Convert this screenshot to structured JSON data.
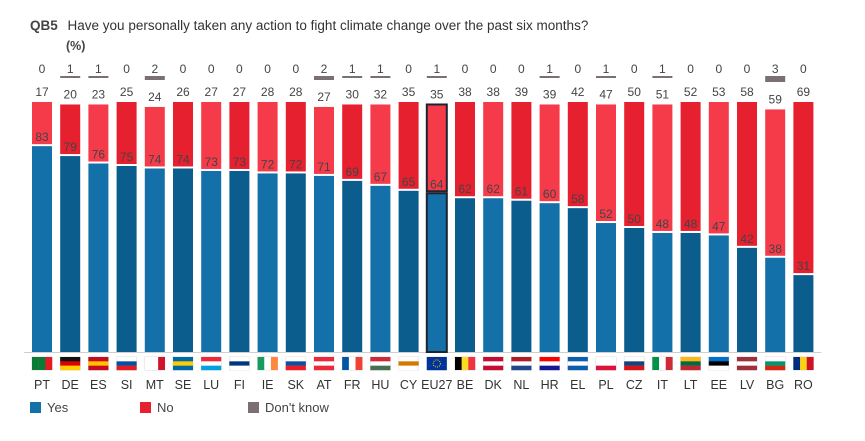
{
  "header": {
    "code": "QB5",
    "question": "Have you personally taken any action to fight climate change over the past six months?",
    "unit": "(%)"
  },
  "colors": {
    "yes": "#1470a8",
    "yes_dark": "#0b5d8e",
    "no": "#e6202f",
    "no_light": "#f53a4a",
    "dont_know": "#7a6f71"
  },
  "legend": [
    {
      "label": "Yes",
      "color_key": "yes"
    },
    {
      "label": "No",
      "color_key": "no"
    },
    {
      "label": "Don't know",
      "color_key": "dont_know"
    }
  ],
  "chart_data": {
    "type": "bar",
    "stacked": true,
    "categories": [
      "PT",
      "DE",
      "ES",
      "SI",
      "MT",
      "SE",
      "LU",
      "FI",
      "IE",
      "SK",
      "AT",
      "FR",
      "HU",
      "CY",
      "EU27",
      "BE",
      "DK",
      "NL",
      "HR",
      "EL",
      "PL",
      "CZ",
      "IT",
      "LT",
      "EE",
      "LV",
      "BG",
      "RO"
    ],
    "highlight": "EU27",
    "series": [
      {
        "name": "Yes",
        "values": [
          83,
          79,
          76,
          75,
          74,
          74,
          73,
          73,
          72,
          72,
          71,
          69,
          67,
          65,
          64,
          62,
          62,
          61,
          60,
          58,
          52,
          50,
          48,
          48,
          47,
          42,
          38,
          31
        ]
      },
      {
        "name": "No",
        "values": [
          17,
          20,
          23,
          25,
          24,
          26,
          27,
          27,
          28,
          28,
          27,
          30,
          32,
          35,
          35,
          38,
          38,
          39,
          39,
          42,
          47,
          50,
          51,
          52,
          53,
          58,
          59,
          69
        ]
      },
      {
        "name": "Don't know",
        "values": [
          0,
          1,
          1,
          0,
          2,
          0,
          0,
          0,
          0,
          0,
          2,
          1,
          1,
          0,
          1,
          0,
          0,
          0,
          1,
          0,
          1,
          0,
          1,
          0,
          0,
          0,
          3,
          0
        ]
      }
    ],
    "ylim": [
      0,
      100
    ],
    "legend_position": "bottom-left"
  }
}
